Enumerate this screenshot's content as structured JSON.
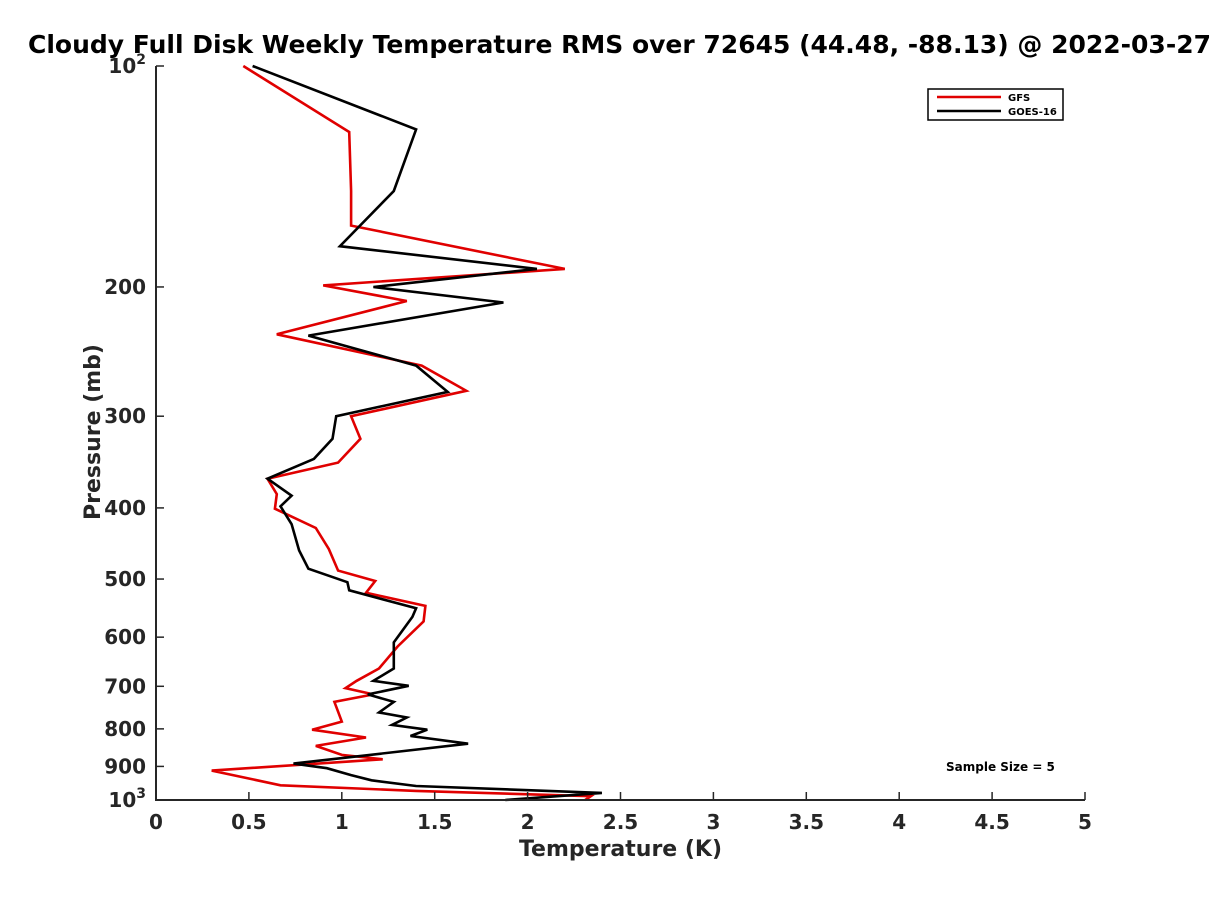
{
  "chart_data": {
    "type": "line",
    "title": "Cloudy Full Disk Weekly Temperature RMS over 72645 (44.48, -88.13) @ 2022-03-27",
    "xlabel": "Temperature (K)",
    "ylabel": "Pressure (mb)",
    "xlim": [
      0,
      5
    ],
    "ylim": [
      100,
      1000
    ],
    "y_scale": "log",
    "y_reversed": true,
    "x_ticks": [
      "0",
      "0.5",
      "1",
      "1.5",
      "2",
      "2.5",
      "3",
      "3.5",
      "4",
      "4.5",
      "5"
    ],
    "y_ticks": [
      {
        "value": 100,
        "label": "10",
        "sup": "2"
      },
      {
        "value": 200,
        "label": "200",
        "sup": ""
      },
      {
        "value": 300,
        "label": "300",
        "sup": ""
      },
      {
        "value": 400,
        "label": "400",
        "sup": ""
      },
      {
        "value": 500,
        "label": "500",
        "sup": ""
      },
      {
        "value": 600,
        "label": "600",
        "sup": ""
      },
      {
        "value": 700,
        "label": "700",
        "sup": ""
      },
      {
        "value": 800,
        "label": "800",
        "sup": ""
      },
      {
        "value": 900,
        "label": "900",
        "sup": ""
      },
      {
        "value": 1000,
        "label": "10",
        "sup": "3"
      }
    ],
    "legend_position": "top-right",
    "grid": false,
    "annotation": "Sample Size = 5",
    "series": [
      {
        "name": "GFS",
        "color": "#e00000",
        "points": [
          [
            0.47,
            100
          ],
          [
            1.04,
            123
          ],
          [
            1.05,
            148
          ],
          [
            1.05,
            165
          ],
          [
            2.2,
            189
          ],
          [
            0.9,
            199
          ],
          [
            1.35,
            209
          ],
          [
            0.65,
            232
          ],
          [
            1.43,
            256
          ],
          [
            1.67,
            277
          ],
          [
            1.05,
            300
          ],
          [
            1.1,
            322
          ],
          [
            0.98,
            347
          ],
          [
            0.6,
            365
          ],
          [
            0.65,
            383
          ],
          [
            0.64,
            401
          ],
          [
            0.86,
            426
          ],
          [
            0.93,
            455
          ],
          [
            0.98,
            487
          ],
          [
            1.18,
            503
          ],
          [
            1.13,
            522
          ],
          [
            1.45,
            544
          ],
          [
            1.44,
            571
          ],
          [
            1.3,
            618
          ],
          [
            1.2,
            662
          ],
          [
            1.08,
            688
          ],
          [
            1.02,
            704
          ],
          [
            1.17,
            718
          ],
          [
            0.96,
            735
          ],
          [
            0.98,
            758
          ],
          [
            1.0,
            782
          ],
          [
            0.84,
            802
          ],
          [
            1.13,
            822
          ],
          [
            0.86,
            844
          ],
          [
            1.0,
            868
          ],
          [
            1.22,
            880
          ],
          [
            0.3,
            912
          ],
          [
            0.67,
            955
          ],
          [
            1.4,
            972
          ],
          [
            2.34,
            988
          ],
          [
            2.31,
            1000
          ]
        ]
      },
      {
        "name": "GOES-16",
        "color": "#000000",
        "points": [
          [
            0.52,
            100
          ],
          [
            1.4,
            122
          ],
          [
            1.28,
            148
          ],
          [
            0.99,
            176
          ],
          [
            2.05,
            189
          ],
          [
            1.17,
            200
          ],
          [
            1.87,
            210
          ],
          [
            0.82,
            233
          ],
          [
            1.4,
            256
          ],
          [
            1.57,
            278
          ],
          [
            0.97,
            300
          ],
          [
            0.95,
            322
          ],
          [
            0.85,
            343
          ],
          [
            0.6,
            365
          ],
          [
            0.73,
            385
          ],
          [
            0.67,
            398
          ],
          [
            0.73,
            421
          ],
          [
            0.77,
            457
          ],
          [
            0.82,
            484
          ],
          [
            1.03,
            505
          ],
          [
            1.04,
            518
          ],
          [
            1.4,
            548
          ],
          [
            1.38,
            563
          ],
          [
            1.28,
            610
          ],
          [
            1.28,
            662
          ],
          [
            1.17,
            688
          ],
          [
            1.36,
            699
          ],
          [
            1.14,
            718
          ],
          [
            1.28,
            735
          ],
          [
            1.2,
            760
          ],
          [
            1.35,
            772
          ],
          [
            1.27,
            790
          ],
          [
            1.46,
            802
          ],
          [
            1.37,
            818
          ],
          [
            1.68,
            838
          ],
          [
            0.74,
            892
          ],
          [
            0.92,
            905
          ],
          [
            1.05,
            925
          ],
          [
            1.16,
            940
          ],
          [
            1.4,
            957
          ],
          [
            2.4,
            978
          ],
          [
            1.88,
            1000
          ]
        ]
      }
    ]
  }
}
